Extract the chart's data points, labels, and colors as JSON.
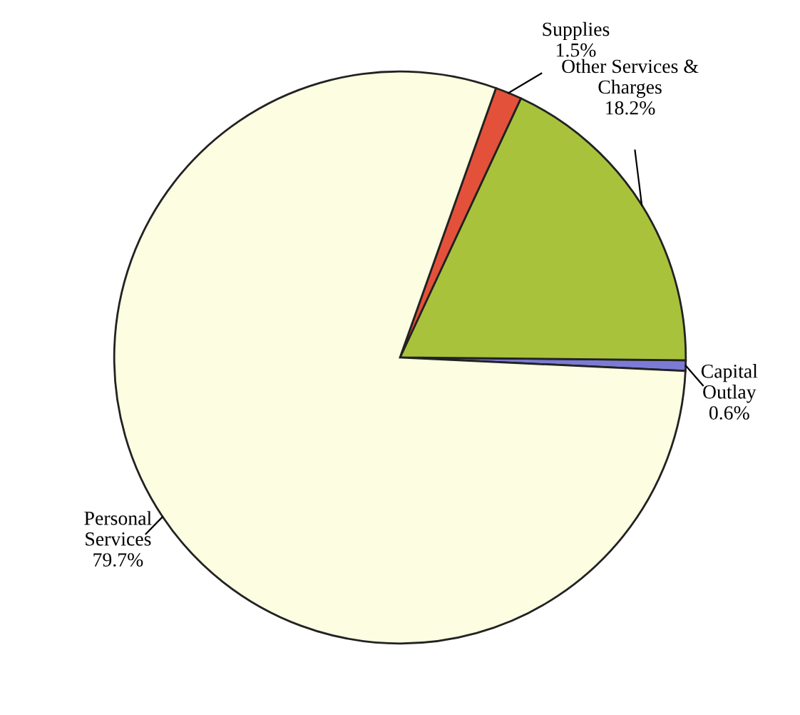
{
  "chart_data": {
    "type": "pie",
    "categories": [
      "Capital\nOutlay",
      "Other Services &\nCharges",
      "Supplies",
      "Personal\nServices"
    ],
    "values": [
      0.6,
      18.2,
      1.5,
      79.7
    ],
    "value_labels": [
      "0.6%",
      "18.2%",
      "1.5%",
      "79.7%"
    ],
    "colors": [
      "#7b7bd6",
      "#a9c23c",
      "#e4513a",
      "#fdfde2"
    ]
  }
}
